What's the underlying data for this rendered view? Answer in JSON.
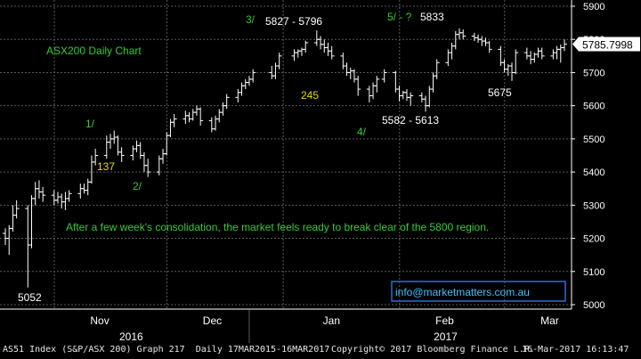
{
  "chart_data": {
    "type": "ohlc",
    "title": "ASX200 Daily Chart",
    "ylim": [
      4990,
      5920
    ],
    "y_ticks": [
      5000,
      5100,
      5200,
      5300,
      5400,
      5500,
      5600,
      5700,
      5800,
      5900
    ],
    "y_tick_labels": [
      "5000",
      "5100",
      "5200",
      "5300",
      "5400",
      "5500",
      "5600",
      "5700",
      "5800",
      "5900"
    ],
    "x_months": [
      "Nov",
      "Dec",
      "Jan",
      "Feb",
      "Mar"
    ],
    "x_years": [
      "2016",
      "2017"
    ],
    "last_price": "5785.7998",
    "colors": {
      "background": "#000000",
      "bars": "#ffffff",
      "grid": "#5a5a5a",
      "green_text": "#33cc33",
      "yellow_text": "#e8d800",
      "white_text": "#ffffff",
      "email_box": "#2f6cd8",
      "email_text": "#3fc0ff"
    },
    "bars": [
      {
        "date": "2016-10-18",
        "o": 5215,
        "h": 5230,
        "l": 5180,
        "c": 5200
      },
      {
        "date": "2016-10-19",
        "o": 5200,
        "h": 5240,
        "l": 5150,
        "c": 5230
      },
      {
        "date": "2016-10-20",
        "o": 5230,
        "h": 5300,
        "l": 5220,
        "c": 5270
      },
      {
        "date": "2016-10-21",
        "o": 5270,
        "h": 5315,
        "l": 5260,
        "c": 5290
      },
      {
        "date": "2016-10-24",
        "o": 5290,
        "h": 5300,
        "l": 5052,
        "c": 5180
      },
      {
        "date": "2016-10-25",
        "o": 5180,
        "h": 5330,
        "l": 5170,
        "c": 5320
      },
      {
        "date": "2016-10-26",
        "o": 5320,
        "h": 5370,
        "l": 5300,
        "c": 5350
      },
      {
        "date": "2016-10-27",
        "o": 5350,
        "h": 5375,
        "l": 5320,
        "c": 5340
      },
      {
        "date": "2016-10-28",
        "o": 5340,
        "h": 5355,
        "l": 5310,
        "c": 5330
      },
      {
        "date": "2016-10-31",
        "o": 5330,
        "h": 5345,
        "l": 5300,
        "c": 5315
      },
      {
        "date": "2016-11-01",
        "o": 5315,
        "h": 5340,
        "l": 5305,
        "c": 5325
      },
      {
        "date": "2016-11-02",
        "o": 5325,
        "h": 5335,
        "l": 5290,
        "c": 5310
      },
      {
        "date": "2016-11-03",
        "o": 5310,
        "h": 5340,
        "l": 5285,
        "c": 5320
      },
      {
        "date": "2016-11-04",
        "o": 5320,
        "h": 5345,
        "l": 5310,
        "c": 5335
      },
      {
        "date": "2016-11-07",
        "o": 5335,
        "h": 5365,
        "l": 5320,
        "c": 5350
      },
      {
        "date": "2016-11-08",
        "o": 5350,
        "h": 5365,
        "l": 5335,
        "c": 5345
      },
      {
        "date": "2016-11-09",
        "o": 5345,
        "h": 5380,
        "l": 5330,
        "c": 5370
      },
      {
        "date": "2016-11-10",
        "o": 5370,
        "h": 5450,
        "l": 5365,
        "c": 5430
      },
      {
        "date": "2016-11-11",
        "o": 5430,
        "h": 5470,
        "l": 5420,
        "c": 5450
      },
      {
        "date": "2016-11-14",
        "o": 5450,
        "h": 5510,
        "l": 5440,
        "c": 5490
      },
      {
        "date": "2016-11-15",
        "o": 5490,
        "h": 5515,
        "l": 5470,
        "c": 5500
      },
      {
        "date": "2016-11-16",
        "o": 5500,
        "h": 5525,
        "l": 5485,
        "c": 5505
      },
      {
        "date": "2016-11-17",
        "o": 5505,
        "h": 5510,
        "l": 5450,
        "c": 5460
      },
      {
        "date": "2016-11-18",
        "o": 5460,
        "h": 5475,
        "l": 5430,
        "c": 5450
      },
      {
        "date": "2016-11-21",
        "o": 5450,
        "h": 5480,
        "l": 5435,
        "c": 5470
      },
      {
        "date": "2016-11-22",
        "o": 5470,
        "h": 5495,
        "l": 5460,
        "c": 5480
      },
      {
        "date": "2016-11-23",
        "o": 5480,
        "h": 5490,
        "l": 5440,
        "c": 5450
      },
      {
        "date": "2016-11-24",
        "o": 5450,
        "h": 5460,
        "l": 5400,
        "c": 5420
      },
      {
        "date": "2016-11-25",
        "o": 5420,
        "h": 5440,
        "l": 5385,
        "c": 5400
      },
      {
        "date": "2016-11-28",
        "o": 5400,
        "h": 5450,
        "l": 5390,
        "c": 5440
      },
      {
        "date": "2016-11-29",
        "o": 5440,
        "h": 5470,
        "l": 5425,
        "c": 5455
      },
      {
        "date": "2016-11-30",
        "o": 5455,
        "h": 5520,
        "l": 5450,
        "c": 5510
      },
      {
        "date": "2016-12-01",
        "o": 5510,
        "h": 5560,
        "l": 5505,
        "c": 5550
      },
      {
        "date": "2016-12-02",
        "o": 5550,
        "h": 5575,
        "l": 5535,
        "c": 5560
      },
      {
        "date": "2016-12-05",
        "o": 5560,
        "h": 5585,
        "l": 5545,
        "c": 5570
      },
      {
        "date": "2016-12-06",
        "o": 5570,
        "h": 5580,
        "l": 5550,
        "c": 5560
      },
      {
        "date": "2016-12-07",
        "o": 5560,
        "h": 5590,
        "l": 5555,
        "c": 5580
      },
      {
        "date": "2016-12-08",
        "o": 5580,
        "h": 5600,
        "l": 5570,
        "c": 5590
      },
      {
        "date": "2016-12-09",
        "o": 5590,
        "h": 5595,
        "l": 5540,
        "c": 5555
      },
      {
        "date": "2016-12-12",
        "o": 5555,
        "h": 5565,
        "l": 5520,
        "c": 5530
      },
      {
        "date": "2016-12-13",
        "o": 5530,
        "h": 5570,
        "l": 5525,
        "c": 5560
      },
      {
        "date": "2016-12-14",
        "o": 5560,
        "h": 5590,
        "l": 5550,
        "c": 5580
      },
      {
        "date": "2016-12-15",
        "o": 5580,
        "h": 5610,
        "l": 5570,
        "c": 5600
      },
      {
        "date": "2016-12-16",
        "o": 5600,
        "h": 5635,
        "l": 5590,
        "c": 5625
      },
      {
        "date": "2016-12-19",
        "o": 5625,
        "h": 5650,
        "l": 5610,
        "c": 5640
      },
      {
        "date": "2016-12-20",
        "o": 5640,
        "h": 5670,
        "l": 5630,
        "c": 5660
      },
      {
        "date": "2016-12-21",
        "o": 5660,
        "h": 5680,
        "l": 5650,
        "c": 5670
      },
      {
        "date": "2016-12-22",
        "o": 5670,
        "h": 5690,
        "l": 5660,
        "c": 5680
      },
      {
        "date": "2016-12-23",
        "o": 5680,
        "h": 5710,
        "l": 5670,
        "c": 5700
      },
      {
        "date": "2016-12-28",
        "o": 5700,
        "h": 5720,
        "l": 5680,
        "c": 5690
      },
      {
        "date": "2016-12-29",
        "o": 5690,
        "h": 5730,
        "l": 5680,
        "c": 5720
      },
      {
        "date": "2016-12-30",
        "o": 5720,
        "h": 5760,
        "l": 5710,
        "c": 5750
      },
      {
        "date": "2017-01-03",
        "o": 5750,
        "h": 5770,
        "l": 5735,
        "c": 5760
      },
      {
        "date": "2017-01-04",
        "o": 5760,
        "h": 5770,
        "l": 5745,
        "c": 5765
      },
      {
        "date": "2017-01-05",
        "o": 5765,
        "h": 5775,
        "l": 5750,
        "c": 5770
      },
      {
        "date": "2017-01-06",
        "o": 5770,
        "h": 5796,
        "l": 5760,
        "c": 5790
      },
      {
        "date": "2017-01-09",
        "o": 5790,
        "h": 5827,
        "l": 5780,
        "c": 5800
      },
      {
        "date": "2017-01-10",
        "o": 5800,
        "h": 5810,
        "l": 5770,
        "c": 5785
      },
      {
        "date": "2017-01-11",
        "o": 5785,
        "h": 5800,
        "l": 5760,
        "c": 5775
      },
      {
        "date": "2017-01-12",
        "o": 5775,
        "h": 5790,
        "l": 5750,
        "c": 5765
      },
      {
        "date": "2017-01-13",
        "o": 5765,
        "h": 5780,
        "l": 5740,
        "c": 5750
      },
      {
        "date": "2017-01-16",
        "o": 5750,
        "h": 5760,
        "l": 5710,
        "c": 5720
      },
      {
        "date": "2017-01-17",
        "o": 5720,
        "h": 5730,
        "l": 5690,
        "c": 5700
      },
      {
        "date": "2017-01-18",
        "o": 5700,
        "h": 5715,
        "l": 5680,
        "c": 5705
      },
      {
        "date": "2017-01-19",
        "o": 5705,
        "h": 5710,
        "l": 5670,
        "c": 5680
      },
      {
        "date": "2017-01-20",
        "o": 5680,
        "h": 5690,
        "l": 5630,
        "c": 5650
      },
      {
        "date": "2017-01-23",
        "o": 5650,
        "h": 5660,
        "l": 5610,
        "c": 5630
      },
      {
        "date": "2017-01-24",
        "o": 5630,
        "h": 5670,
        "l": 5620,
        "c": 5660
      },
      {
        "date": "2017-01-25",
        "o": 5660,
        "h": 5690,
        "l": 5640,
        "c": 5680
      },
      {
        "date": "2017-01-27",
        "o": 5680,
        "h": 5710,
        "l": 5670,
        "c": 5700
      },
      {
        "date": "2017-01-30",
        "o": 5700,
        "h": 5705,
        "l": 5640,
        "c": 5650
      },
      {
        "date": "2017-01-31",
        "o": 5650,
        "h": 5660,
        "l": 5613,
        "c": 5630
      },
      {
        "date": "2017-02-01",
        "o": 5630,
        "h": 5645,
        "l": 5620,
        "c": 5640
      },
      {
        "date": "2017-02-02",
        "o": 5640,
        "h": 5650,
        "l": 5615,
        "c": 5625
      },
      {
        "date": "2017-02-03",
        "o": 5625,
        "h": 5640,
        "l": 5600,
        "c": 5630
      },
      {
        "date": "2017-02-06",
        "o": 5630,
        "h": 5640,
        "l": 5610,
        "c": 5620
      },
      {
        "date": "2017-02-07",
        "o": 5620,
        "h": 5630,
        "l": 5582,
        "c": 5600
      },
      {
        "date": "2017-02-08",
        "o": 5600,
        "h": 5660,
        "l": 5595,
        "c": 5650
      },
      {
        "date": "2017-02-09",
        "o": 5650,
        "h": 5700,
        "l": 5640,
        "c": 5690
      },
      {
        "date": "2017-02-10",
        "o": 5690,
        "h": 5740,
        "l": 5680,
        "c": 5730
      },
      {
        "date": "2017-02-13",
        "o": 5730,
        "h": 5770,
        "l": 5720,
        "c": 5760
      },
      {
        "date": "2017-02-14",
        "o": 5760,
        "h": 5790,
        "l": 5740,
        "c": 5780
      },
      {
        "date": "2017-02-15",
        "o": 5780,
        "h": 5825,
        "l": 5770,
        "c": 5815
      },
      {
        "date": "2017-02-16",
        "o": 5815,
        "h": 5833,
        "l": 5800,
        "c": 5820
      },
      {
        "date": "2017-02-17",
        "o": 5820,
        "h": 5830,
        "l": 5800,
        "c": 5810
      },
      {
        "date": "2017-02-20",
        "o": 5810,
        "h": 5820,
        "l": 5795,
        "c": 5805
      },
      {
        "date": "2017-02-21",
        "o": 5805,
        "h": 5815,
        "l": 5790,
        "c": 5800
      },
      {
        "date": "2017-02-22",
        "o": 5800,
        "h": 5810,
        "l": 5780,
        "c": 5795
      },
      {
        "date": "2017-02-23",
        "o": 5795,
        "h": 5805,
        "l": 5780,
        "c": 5790
      },
      {
        "date": "2017-02-24",
        "o": 5790,
        "h": 5795,
        "l": 5760,
        "c": 5770
      },
      {
        "date": "2017-02-27",
        "o": 5770,
        "h": 5780,
        "l": 5720,
        "c": 5730
      },
      {
        "date": "2017-02-28",
        "o": 5730,
        "h": 5740,
        "l": 5700,
        "c": 5710
      },
      {
        "date": "2017-03-01",
        "o": 5710,
        "h": 5725,
        "l": 5690,
        "c": 5720
      },
      {
        "date": "2017-03-02",
        "o": 5720,
        "h": 5730,
        "l": 5675,
        "c": 5700
      },
      {
        "date": "2017-03-03",
        "o": 5700,
        "h": 5770,
        "l": 5695,
        "c": 5760
      },
      {
        "date": "2017-03-06",
        "o": 5760,
        "h": 5775,
        "l": 5740,
        "c": 5750
      },
      {
        "date": "2017-03-07",
        "o": 5750,
        "h": 5765,
        "l": 5725,
        "c": 5740
      },
      {
        "date": "2017-03-08",
        "o": 5740,
        "h": 5760,
        "l": 5730,
        "c": 5755
      },
      {
        "date": "2017-03-09",
        "o": 5755,
        "h": 5775,
        "l": 5745,
        "c": 5765
      },
      {
        "date": "2017-03-10",
        "o": 5765,
        "h": 5775,
        "l": 5740,
        "c": 5750
      },
      {
        "date": "2017-03-13",
        "o": 5750,
        "h": 5770,
        "l": 5740,
        "c": 5760
      },
      {
        "date": "2017-03-14",
        "o": 5760,
        "h": 5780,
        "l": 5740,
        "c": 5770
      },
      {
        "date": "2017-03-15",
        "o": 5770,
        "h": 5785,
        "l": 5730,
        "c": 5775
      },
      {
        "date": "2017-03-16",
        "o": 5775,
        "h": 5800,
        "l": 5765,
        "c": 5786
      }
    ],
    "annotations": [
      {
        "text": "ASX200 Daily Chart",
        "color": "green"
      },
      {
        "text": "3/",
        "color": "green"
      },
      {
        "text": "5827 - 5796",
        "color": "white"
      },
      {
        "text": "5/ - ?",
        "color": "green"
      },
      {
        "text": "5833",
        "color": "white"
      },
      {
        "text": "1/",
        "color": "green"
      },
      {
        "text": "137",
        "color": "yellow"
      },
      {
        "text": "2/",
        "color": "green"
      },
      {
        "text": "245",
        "color": "yellow"
      },
      {
        "text": "4/",
        "color": "green"
      },
      {
        "text": "5582 - 5613",
        "color": "white"
      },
      {
        "text": "5675",
        "color": "white"
      },
      {
        "text": "5052",
        "color": "white"
      },
      {
        "text": "After a few week's consolidation, the market feels ready to break clear of the 5800 region.",
        "color": "green"
      }
    ],
    "watermark": "info@marketmatters.com.au"
  },
  "footer": {
    "left": "AS51 Index (S&P/ASX 200) Graph 217  Daily 17MAR2015-16MAR2017",
    "center": "Copyright© 2017 Bloomberg Finance L.P.",
    "right": "16-Mar-2017 16:13:47"
  }
}
